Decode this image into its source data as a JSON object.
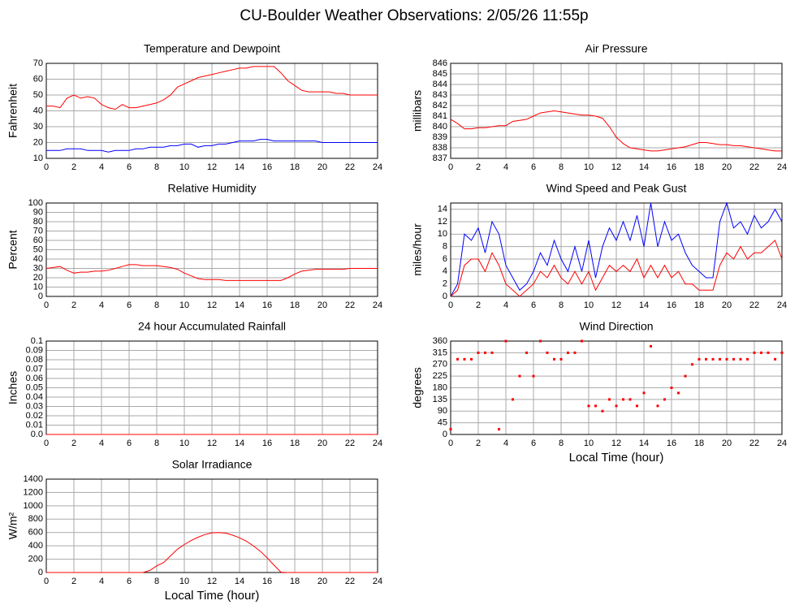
{
  "title": "CU-Boulder Weather Observations: 2/05/26 11:55p",
  "chart_data": [
    {
      "type": "line",
      "title": "Temperature and Dewpoint",
      "y_label": "Fahrenheit",
      "x": [
        0,
        0.5,
        1,
        1.5,
        2,
        2.5,
        3,
        3.5,
        4,
        4.5,
        5,
        5.5,
        6,
        6.5,
        7,
        7.5,
        8,
        8.5,
        9,
        9.5,
        10,
        10.5,
        11,
        11.5,
        12,
        12.5,
        13,
        13.5,
        14,
        14.5,
        15,
        15.5,
        16,
        16.5,
        17,
        17.5,
        18,
        18.5,
        19,
        19.5,
        20,
        20.5,
        21,
        21.5,
        22,
        22.5,
        23,
        23.5,
        24
      ],
      "series": [
        {
          "name": "Temperature",
          "color": "#ff0000",
          "values": [
            43,
            43,
            42,
            48,
            50,
            48,
            49,
            48,
            44,
            42,
            41,
            44,
            42,
            42,
            43,
            44,
            45,
            47,
            50,
            55,
            57,
            59,
            61,
            62,
            63,
            64,
            65,
            66,
            67,
            67,
            68,
            68,
            68,
            68,
            64,
            59,
            56,
            53,
            52,
            52,
            52,
            52,
            51,
            51,
            50,
            50,
            50,
            50,
            50
          ]
        },
        {
          "name": "Dewpoint",
          "color": "#0000ff",
          "values": [
            15,
            15,
            15,
            16,
            16,
            16,
            15,
            15,
            15,
            14,
            15,
            15,
            15,
            16,
            16,
            17,
            17,
            17,
            18,
            18,
            19,
            19,
            17,
            18,
            18,
            19,
            19,
            20,
            21,
            21,
            21,
            22,
            22,
            21,
            21,
            21,
            21,
            21,
            21,
            21,
            20,
            20,
            20,
            20,
            20,
            20,
            20,
            20,
            20
          ]
        }
      ],
      "xlim": [
        0,
        24
      ],
      "xticks": [
        0,
        2,
        4,
        6,
        8,
        10,
        12,
        14,
        16,
        18,
        20,
        22,
        24
      ],
      "ylim": [
        10,
        70
      ],
      "yticks": [
        10,
        20,
        30,
        40,
        50,
        60,
        70
      ],
      "grid": true
    },
    {
      "type": "line",
      "title": "Air Pressure",
      "y_label": "millibars",
      "x": [
        0,
        0.5,
        1,
        1.5,
        2,
        2.5,
        3,
        3.5,
        4,
        4.5,
        5,
        5.5,
        6,
        6.5,
        7,
        7.5,
        8,
        8.5,
        9,
        9.5,
        10,
        10.5,
        11,
        11.5,
        12,
        12.5,
        13,
        13.5,
        14,
        14.5,
        15,
        15.5,
        16,
        16.5,
        17,
        17.5,
        18,
        18.5,
        19,
        19.5,
        20,
        20.5,
        21,
        21.5,
        22,
        22.5,
        23,
        23.5,
        24
      ],
      "series": [
        {
          "name": "Pressure",
          "color": "#ff0000",
          "values": [
            840.7,
            840.3,
            839.8,
            839.8,
            839.9,
            839.9,
            840.0,
            840.1,
            840.1,
            840.5,
            840.6,
            840.7,
            841.0,
            841.3,
            841.4,
            841.5,
            841.4,
            841.3,
            841.2,
            841.1,
            841.1,
            841.0,
            840.8,
            840.0,
            839.0,
            838.4,
            838.0,
            837.9,
            837.8,
            837.7,
            837.7,
            837.8,
            837.9,
            838.0,
            838.1,
            838.3,
            838.5,
            838.5,
            838.4,
            838.3,
            838.3,
            838.2,
            838.2,
            838.1,
            838.0,
            837.9,
            837.8,
            837.7,
            837.7
          ]
        }
      ],
      "xlim": [
        0,
        24
      ],
      "xticks": [
        0,
        2,
        4,
        6,
        8,
        10,
        12,
        14,
        16,
        18,
        20,
        22,
        24
      ],
      "ylim": [
        837,
        846
      ],
      "yticks": [
        837,
        838,
        839,
        840,
        841,
        842,
        843,
        844,
        845,
        846
      ],
      "grid": true
    },
    {
      "type": "line",
      "title": "Relative Humidity",
      "y_label": "Percent",
      "x": [
        0,
        0.5,
        1,
        1.5,
        2,
        2.5,
        3,
        3.5,
        4,
        4.5,
        5,
        5.5,
        6,
        6.5,
        7,
        7.5,
        8,
        8.5,
        9,
        9.5,
        10,
        10.5,
        11,
        11.5,
        12,
        12.5,
        13,
        13.5,
        14,
        14.5,
        15,
        15.5,
        16,
        16.5,
        17,
        17.5,
        18,
        18.5,
        19,
        19.5,
        20,
        20.5,
        21,
        21.5,
        22,
        22.5,
        23,
        23.5,
        24
      ],
      "series": [
        {
          "name": "Humidity",
          "color": "#ff0000",
          "values": [
            30,
            31,
            32,
            28,
            25,
            26,
            26,
            27,
            27,
            28,
            30,
            32,
            34,
            34,
            33,
            33,
            33,
            32,
            31,
            29,
            25,
            22,
            19,
            18,
            18,
            18,
            17,
            17,
            17,
            17,
            17,
            17,
            17,
            17,
            17,
            20,
            24,
            27,
            28,
            29,
            29,
            29,
            29,
            29,
            30,
            30,
            30,
            30,
            30
          ]
        }
      ],
      "xlim": [
        0,
        24
      ],
      "xticks": [
        0,
        2,
        4,
        6,
        8,
        10,
        12,
        14,
        16,
        18,
        20,
        22,
        24
      ],
      "ylim": [
        0,
        100
      ],
      "yticks": [
        0,
        10,
        20,
        30,
        40,
        50,
        60,
        70,
        80,
        90,
        100
      ],
      "grid": true
    },
    {
      "type": "line",
      "title": "Wind Speed and Peak Gust",
      "y_label": "miles/hour",
      "x": [
        0,
        0.5,
        1,
        1.5,
        2,
        2.5,
        3,
        3.5,
        4,
        4.5,
        5,
        5.5,
        6,
        6.5,
        7,
        7.5,
        8,
        8.5,
        9,
        9.5,
        10,
        10.5,
        11,
        11.5,
        12,
        12.5,
        13,
        13.5,
        14,
        14.5,
        15,
        15.5,
        16,
        16.5,
        17,
        17.5,
        18,
        18.5,
        19,
        19.5,
        20,
        20.5,
        21,
        21.5,
        22,
        22.5,
        23,
        23.5,
        24
      ],
      "series": [
        {
          "name": "Peak Gust",
          "color": "#0000ff",
          "values": [
            0,
            2,
            10,
            9,
            11,
            7,
            12,
            10,
            5,
            3,
            1,
            2,
            4,
            7,
            5,
            9,
            6,
            4,
            8,
            4,
            9,
            3,
            8,
            11,
            9,
            12,
            9,
            13,
            8,
            15,
            8,
            12,
            9,
            10,
            7,
            5,
            4,
            3,
            3,
            12,
            15,
            11,
            12,
            10,
            13,
            11,
            12,
            14,
            12
          ]
        },
        {
          "name": "Wind Speed",
          "color": "#ff0000",
          "values": [
            0,
            1,
            5,
            6,
            6,
            4,
            7,
            5,
            2,
            1,
            0,
            1,
            2,
            4,
            3,
            5,
            3,
            2,
            4,
            2,
            4,
            1,
            3,
            5,
            4,
            5,
            4,
            6,
            3,
            5,
            3,
            5,
            3,
            4,
            2,
            2,
            1,
            1,
            1,
            5,
            7,
            6,
            8,
            6,
            7,
            7,
            8,
            9,
            6
          ]
        }
      ],
      "xlim": [
        0,
        24
      ],
      "xticks": [
        0,
        2,
        4,
        6,
        8,
        10,
        12,
        14,
        16,
        18,
        20,
        22,
        24
      ],
      "ylim": [
        0,
        15
      ],
      "yticks": [
        0,
        2,
        4,
        6,
        8,
        10,
        12,
        14
      ],
      "grid": true
    },
    {
      "type": "line",
      "title": "24 hour Accumulated Rainfall",
      "y_label": "Inches",
      "x": [
        0,
        24
      ],
      "series": [
        {
          "name": "Rainfall",
          "color": "#ff0000",
          "values": [
            0,
            0
          ]
        }
      ],
      "xlim": [
        0,
        24
      ],
      "xticks": [
        0,
        2,
        4,
        6,
        8,
        10,
        12,
        14,
        16,
        18,
        20,
        22,
        24
      ],
      "ylim": [
        0,
        0.1
      ],
      "yticks": [
        {
          "value": 0,
          "label": "0.0"
        },
        0.01,
        0.02,
        0.03,
        0.04,
        0.05,
        0.06,
        0.07,
        0.08,
        0.09,
        0.1
      ],
      "grid": true
    },
    {
      "type": "scatter",
      "title": "Wind Direction",
      "y_label": "degrees",
      "x_label": "Local Time (hour)",
      "x": [
        0,
        0.5,
        1,
        1.5,
        2,
        2.5,
        3,
        3.5,
        4,
        4.5,
        5,
        5.5,
        6,
        6.5,
        7,
        7.5,
        8,
        8.5,
        9,
        9.5,
        10,
        10.5,
        11,
        11.5,
        12,
        12.5,
        13,
        13.5,
        14,
        14.5,
        15,
        15.5,
        16,
        16.5,
        17,
        17.5,
        18,
        18.5,
        19,
        19.5,
        20,
        20.5,
        21,
        21.5,
        22,
        22.5,
        23,
        23.5,
        24
      ],
      "series": [
        {
          "name": "Direction",
          "color": "#ff0000",
          "values": [
            20,
            290,
            290,
            290,
            315,
            315,
            315,
            20,
            360,
            135,
            225,
            315,
            225,
            360,
            315,
            290,
            290,
            315,
            315,
            360,
            110,
            110,
            90,
            135,
            110,
            135,
            135,
            110,
            160,
            340,
            110,
            135,
            180,
            160,
            225,
            270,
            290,
            290,
            290,
            290,
            290,
            290,
            290,
            290,
            315,
            315,
            315,
            290,
            315
          ]
        }
      ],
      "xlim": [
        0,
        24
      ],
      "xticks": [
        0,
        2,
        4,
        6,
        8,
        10,
        12,
        14,
        16,
        18,
        20,
        22,
        24
      ],
      "ylim": [
        0,
        360
      ],
      "yticks": [
        0,
        45,
        90,
        135,
        180,
        225,
        270,
        315,
        360
      ],
      "grid": true
    },
    {
      "type": "line",
      "title": "Solar Irradiance",
      "y_label": "W/m²",
      "x_label": "Local Time (hour)",
      "x": [
        0,
        0.5,
        1,
        1.5,
        2,
        2.5,
        3,
        3.5,
        4,
        4.5,
        5,
        5.5,
        6,
        6.5,
        7,
        7.5,
        8,
        8.5,
        9,
        9.5,
        10,
        10.5,
        11,
        11.5,
        12,
        12.5,
        13,
        13.5,
        14,
        14.5,
        15,
        15.5,
        16,
        16.5,
        17,
        17.5,
        18,
        18.5,
        19,
        19.5,
        20,
        20.5,
        21,
        21.5,
        22,
        22.5,
        23,
        23.5,
        24
      ],
      "series": [
        {
          "name": "Irradiance",
          "color": "#ff0000",
          "values": [
            0,
            0,
            0,
            0,
            0,
            0,
            0,
            0,
            0,
            0,
            0,
            0,
            0,
            0,
            0,
            30,
            100,
            150,
            250,
            350,
            420,
            480,
            530,
            570,
            595,
            600,
            590,
            560,
            520,
            470,
            400,
            320,
            220,
            110,
            5,
            0,
            0,
            0,
            0,
            0,
            0,
            0,
            0,
            0,
            0,
            0,
            0,
            0,
            0
          ]
        }
      ],
      "xlim": [
        0,
        24
      ],
      "xticks": [
        0,
        2,
        4,
        6,
        8,
        10,
        12,
        14,
        16,
        18,
        20,
        22,
        24
      ],
      "ylim": [
        0,
        1400
      ],
      "yticks": [
        0,
        200,
        400,
        600,
        800,
        1000,
        1200,
        1400
      ],
      "grid": true
    }
  ]
}
